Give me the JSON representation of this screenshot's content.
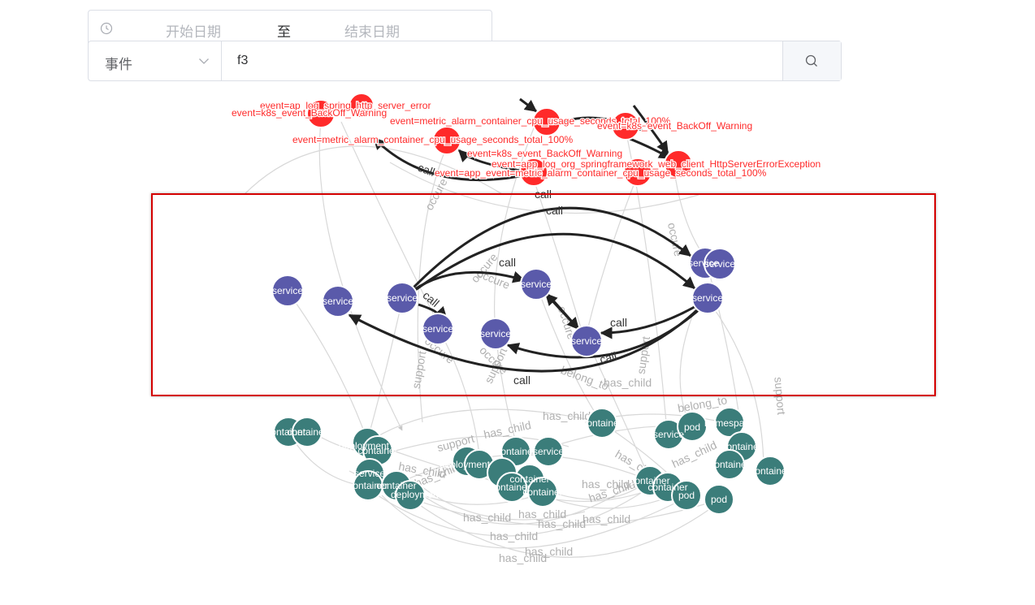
{
  "date_range": {
    "start_placeholder": "开始日期",
    "separator": "至",
    "end_placeholder": "结束日期",
    "icon": "clock-icon"
  },
  "search": {
    "type_value": "事件",
    "query_value": "f3",
    "icon": "search-icon"
  },
  "colors": {
    "event": "#ff2a2a",
    "service": "#5a5aaa",
    "infra": "#3b7d7a",
    "selection": "#d40000"
  },
  "graph": {
    "events": [
      "event=ap_log_spring_http_server_error",
      "event=k8s_event_BackOff_Warning",
      "event=metric_alarm_container_cpu_usage_seconds_total_100%",
      "event=metric_alarm_container_cpu_usage_seconds_total_100%",
      "event=k8s_event_BackOff_Warning",
      "event=app_log_org_springframework_web_client_HttpServerErrorException",
      "event=app_event=metric_alarm_container_cpu_usage_seconds_total_100%",
      "event=k8s_event_BackOff_Warning"
    ],
    "services": [
      "service",
      "service",
      "service",
      "service",
      "service",
      "service",
      "service",
      "service",
      "service",
      "service"
    ],
    "infra": [
      "container",
      "container",
      "container",
      "container",
      "deployment",
      "container",
      "service",
      "container",
      "container",
      "deployment",
      "container",
      "container",
      "service",
      "container",
      "container",
      "container",
      "container",
      "deployment",
      "container",
      "service",
      "container",
      "pod",
      "namespace",
      "container",
      "container",
      "container",
      "container",
      "pod",
      "pod",
      "deployment",
      "container",
      "container"
    ],
    "edge_labels": {
      "call": "call",
      "occure": "occure",
      "support": "support",
      "belong_to": "belong_to",
      "has_child": "has_child"
    }
  }
}
